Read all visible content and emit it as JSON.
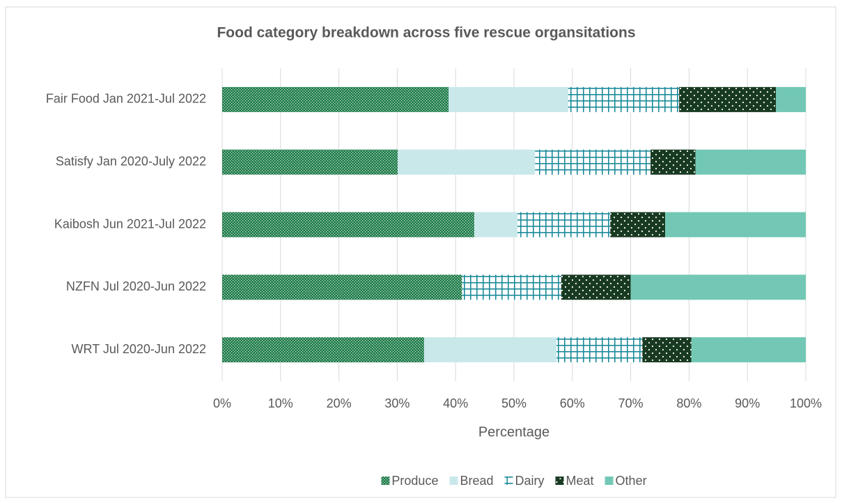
{
  "chart_data": {
    "type": "stacked-bar-horizontal",
    "title": "Food category breakdown across five rescue organsitations",
    "x_axis_label": "Percentage",
    "categories": [
      "Fair Food Jan 2021-Jul 2022",
      "Satisfy Jan 2020-July 2022",
      "Kaibosh Jun 2021-Jul 2022",
      "NZFN Jul 2020-Jun 2022",
      "WRT Jul 2020-Jun 2022"
    ],
    "series": [
      {
        "name": "Produce",
        "color": "#1e7a4a",
        "values": [
          38.8,
          30.1,
          43.2,
          41.1,
          34.6
        ]
      },
      {
        "name": "Bread",
        "color": "#c9e8ea",
        "values": [
          20.5,
          23.5,
          7.4,
          0,
          22.7
        ]
      },
      {
        "name": "Dairy",
        "color": "#1a8a9a",
        "values": [
          19.0,
          19.8,
          15.9,
          17.0,
          14.7
        ]
      },
      {
        "name": "Meat",
        "color": "#183a22",
        "values": [
          16.6,
          7.7,
          9.4,
          11.9,
          8.4
        ]
      },
      {
        "name": "Other",
        "color": "#72c8b4",
        "values": [
          5.1,
          18.9,
          24.1,
          30.0,
          19.6
        ]
      }
    ],
    "xlim": [
      0,
      100
    ],
    "xticks": [
      {
        "value": 0,
        "label": "0%"
      },
      {
        "value": 10,
        "label": "10%"
      },
      {
        "value": 20,
        "label": "20%"
      },
      {
        "value": 30,
        "label": "30%"
      },
      {
        "value": 40,
        "label": "40%"
      },
      {
        "value": 50,
        "label": "50%"
      },
      {
        "value": 60,
        "label": "60%"
      },
      {
        "value": 70,
        "label": "70%"
      },
      {
        "value": 80,
        "label": "80%"
      },
      {
        "value": 90,
        "label": "90%"
      },
      {
        "value": 100,
        "label": "100%"
      }
    ],
    "grid": true,
    "legend": "bottom"
  }
}
